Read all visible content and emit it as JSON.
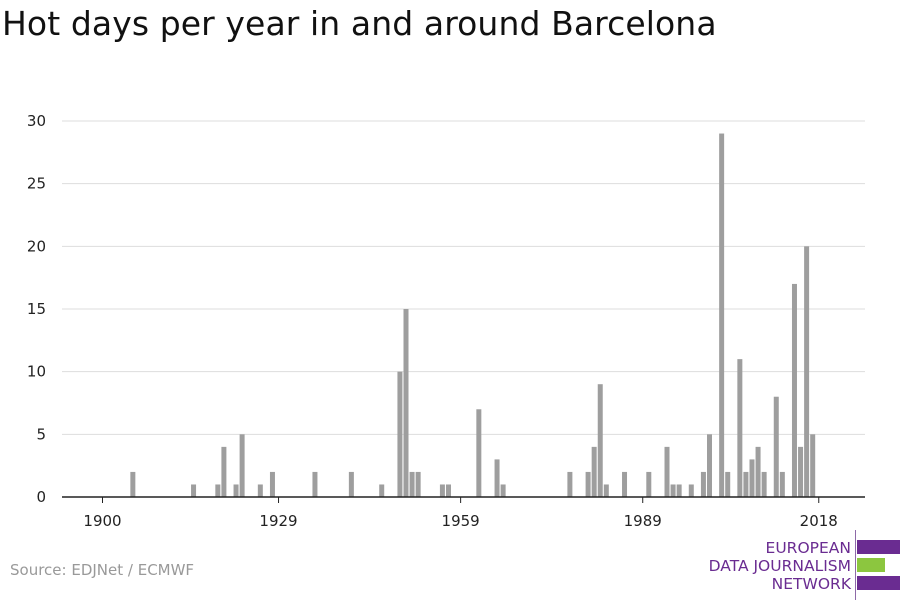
{
  "title": "Hot days per year in and around Barcelona",
  "source": "Source: EDJNet / ECMWF",
  "logo": {
    "lines": [
      "EUROPEAN",
      "DATA JOURNALISM",
      "NETWORK"
    ],
    "colors": {
      "primary": "#6a2c91",
      "accent": "#8cc63f"
    }
  },
  "colors": {
    "bar": "#9e9e9e",
    "grid": "#dddddd",
    "axis": "#222222"
  },
  "chart_data": {
    "type": "bar",
    "title": "Hot days per year in and around Barcelona",
    "xlabel": "",
    "ylabel": "",
    "xlim": [
      1896,
      2022
    ],
    "ylim": [
      0,
      30
    ],
    "x_ticks": [
      1900,
      1929,
      1959,
      1989,
      2018
    ],
    "y_ticks": [
      0,
      5,
      10,
      15,
      20,
      25,
      30
    ],
    "grid": true,
    "x": [
      1905,
      1915,
      1919,
      1920,
      1922,
      1923,
      1926,
      1928,
      1935,
      1941,
      1946,
      1949,
      1950,
      1951,
      1952,
      1956,
      1957,
      1962,
      1965,
      1966,
      1977,
      1980,
      1981,
      1982,
      1983,
      1986,
      1990,
      1993,
      1994,
      1995,
      1997,
      1999,
      2000,
      2002,
      2003,
      2005,
      2006,
      2007,
      2008,
      2009,
      2011,
      2012,
      2014,
      2015,
      2016,
      2017
    ],
    "values": [
      2,
      1,
      1,
      4,
      1,
      5,
      1,
      2,
      2,
      2,
      1,
      10,
      15,
      2,
      2,
      1,
      1,
      7,
      3,
      1,
      2,
      2,
      4,
      9,
      1,
      2,
      2,
      4,
      1,
      1,
      1,
      2,
      5,
      29,
      2,
      11,
      2,
      3,
      4,
      2,
      8,
      2,
      17,
      4,
      20,
      5
    ]
  }
}
